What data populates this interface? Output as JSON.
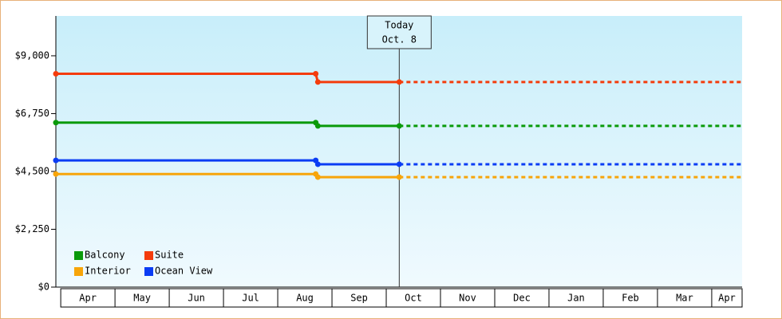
{
  "chart_data": {
    "type": "line",
    "categories": [
      "Apr",
      "May",
      "Jun",
      "Jul",
      "Aug",
      "Sep",
      "Oct",
      "Nov",
      "Dec",
      "Jan",
      "Feb",
      "Mar",
      "Apr"
    ],
    "x": [
      -0.09,
      4.7,
      4.74,
      6.24
    ],
    "xlim": [
      -0.09,
      12.56
    ],
    "ylim": [
      0,
      10550
    ],
    "yticks": [
      {
        "value": 0,
        "label": "$0"
      },
      {
        "value": 2250,
        "label": "$2,250"
      },
      {
        "value": 4500,
        "label": "$4,500"
      },
      {
        "value": 6750,
        "label": "$6,750"
      },
      {
        "value": 9000,
        "label": "$9,000"
      }
    ],
    "series": [
      {
        "name": "Balcony",
        "color": "#0a9a0a",
        "values": [
          6400,
          6400,
          6270,
          6270
        ]
      },
      {
        "name": "Suite",
        "color": "#f43c0c",
        "values": [
          8300,
          8300,
          7980,
          7980
        ]
      },
      {
        "name": "Interior",
        "color": "#f7a50a",
        "values": [
          4400,
          4400,
          4280,
          4280
        ]
      },
      {
        "name": "Ocean View",
        "color": "#0a3cf4",
        "values": [
          4930,
          4930,
          4780,
          4780
        ]
      }
    ],
    "today": {
      "x": 6.24,
      "label": [
        "Today",
        "Oct. 8"
      ]
    }
  }
}
